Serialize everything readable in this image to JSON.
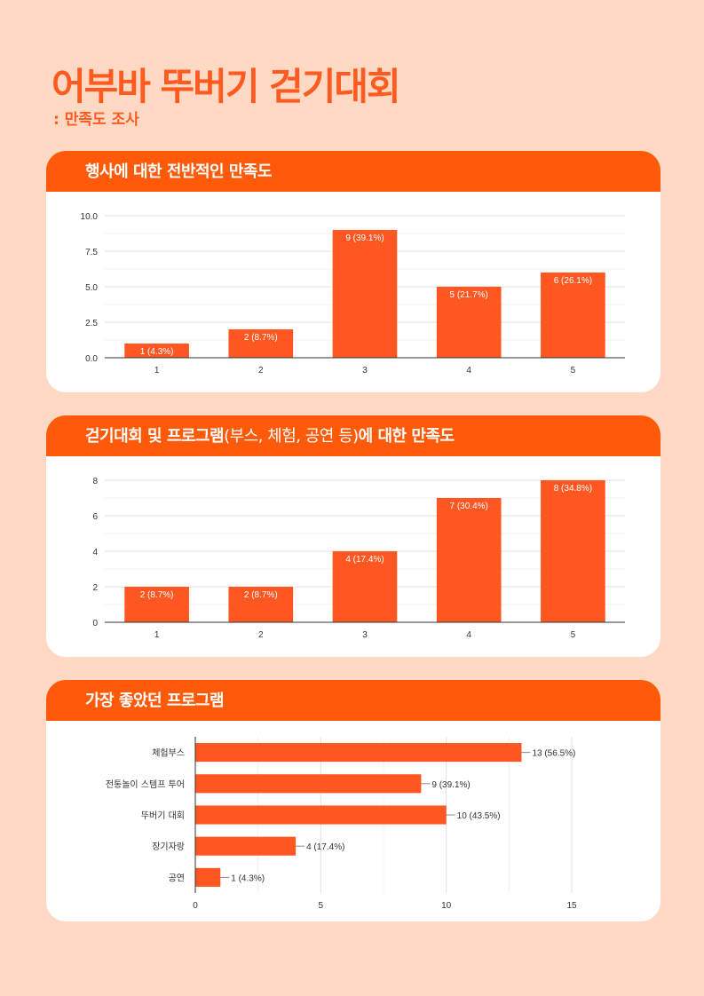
{
  "page": {
    "title": "어부바 뚜버기 걷기대회",
    "subtitle": ": 만족도 조사"
  },
  "colors": {
    "accent": "#ff5a0a",
    "bar": "#ff5722",
    "background": "#ffd9c4"
  },
  "chart_data": [
    {
      "type": "bar",
      "title": "행사에 대한 전반적인 만족도",
      "categories": [
        "1",
        "2",
        "3",
        "4",
        "5"
      ],
      "values": [
        1,
        2,
        9,
        5,
        6
      ],
      "labels": [
        "1 (4.3%)",
        "2 (8.7%)",
        "9 (39.1%)",
        "5 (21.7%)",
        "6 (26.1%)"
      ],
      "yticks": [
        "0.0",
        "2.5",
        "5.0",
        "7.5",
        "10.0"
      ],
      "ylim": [
        0,
        10
      ],
      "grid": true
    },
    {
      "type": "bar",
      "title_bold": "걷기대회 및 프로그램",
      "title_light": "(부스, 체험, 공연 등)",
      "title_end": "에 대한 만족도",
      "categories": [
        "1",
        "2",
        "3",
        "4",
        "5"
      ],
      "values": [
        2,
        2,
        4,
        7,
        8
      ],
      "labels": [
        "2 (8.7%)",
        "2 (8.7%)",
        "4 (17.4%)",
        "7 (30.4%)",
        "8 (34.8%)"
      ],
      "yticks": [
        "0",
        "2",
        "4",
        "6",
        "8"
      ],
      "ylim": [
        0,
        8
      ],
      "grid": true
    },
    {
      "type": "bar",
      "orientation": "horizontal",
      "title": "가장 좋았던 프로그램",
      "categories": [
        "체험부스",
        "전통놀이 스템프 투어",
        "뚜버기 대회",
        "장기자랑",
        "공연"
      ],
      "values": [
        13,
        9,
        10,
        4,
        1
      ],
      "labels": [
        "13 (56.5%)",
        "9 (39.1%)",
        "10 (43.5%)",
        "4 (17.4%)",
        "1 (4.3%)"
      ],
      "xticks": [
        "0",
        "5",
        "10",
        "15"
      ],
      "xlim": [
        0,
        15
      ],
      "grid": true
    }
  ]
}
